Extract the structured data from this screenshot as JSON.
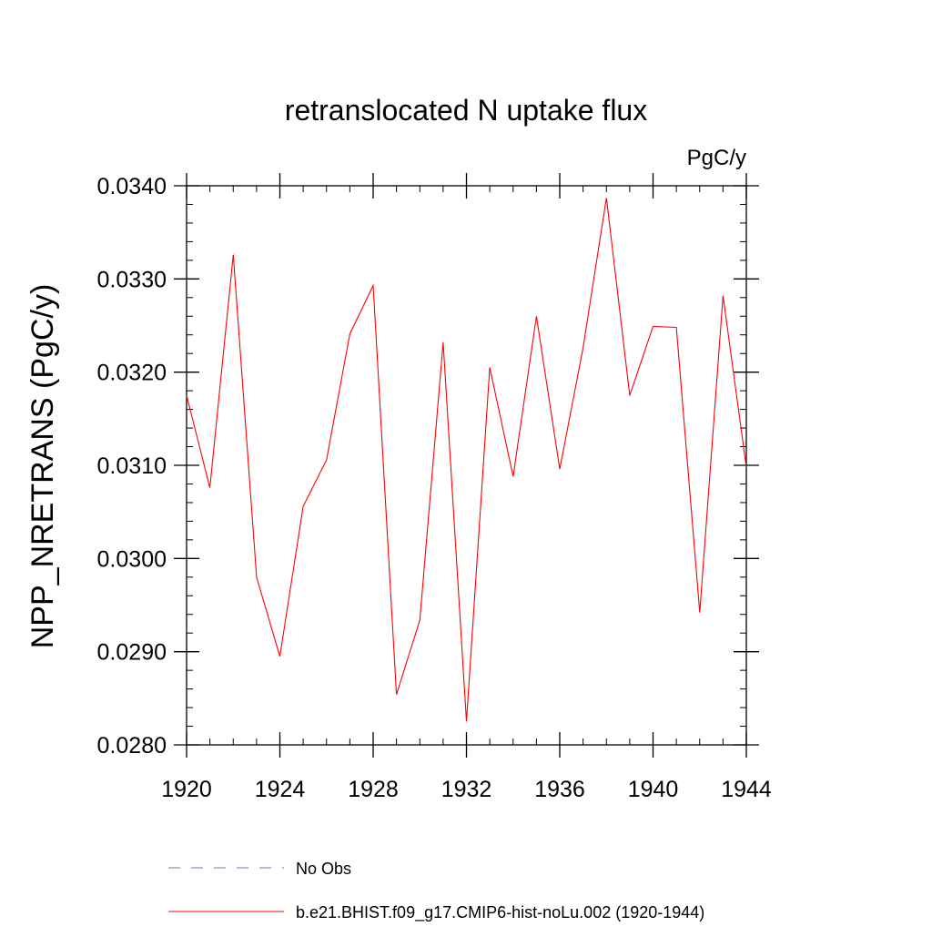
{
  "chart_data": {
    "type": "line",
    "title": "retranslocated N uptake flux",
    "units_label": "PgC/y",
    "ylabel": "NPP_NRETRANS  (PgC/y)",
    "xlabel": "",
    "xlim": [
      1920,
      1944
    ],
    "ylim": [
      0.028,
      0.034
    ],
    "x_ticks": [
      1920,
      1924,
      1928,
      1932,
      1936,
      1940,
      1944
    ],
    "x_tick_labels": [
      "1920",
      "1924",
      "1928",
      "1932",
      "1936",
      "1940",
      "1944"
    ],
    "y_ticks": [
      0.028,
      0.029,
      0.03,
      0.031,
      0.032,
      0.033,
      0.034
    ],
    "y_tick_labels": [
      "0.0280",
      "0.0290",
      "0.0300",
      "0.0310",
      "0.0320",
      "0.0330",
      "0.0340"
    ],
    "y_minor_step": 0.0002,
    "x_minor_step": 1,
    "series": [
      {
        "name": "b.e21.BHIST.f09_g17.CMIP6-hist-noLu.002 (1920-1944)",
        "color": "#ff0000",
        "style": "solid",
        "x": [
          1920,
          1921,
          1922,
          1923,
          1924,
          1925,
          1926,
          1927,
          1928,
          1929,
          1930,
          1931,
          1932,
          1933,
          1934,
          1935,
          1936,
          1937,
          1938,
          1939,
          1940,
          1941,
          1942,
          1943,
          1944
        ],
        "y": [
          0.03175,
          0.03076,
          0.03326,
          0.0298,
          0.02895,
          0.03056,
          0.03106,
          0.03241,
          0.03293,
          0.02854,
          0.02934,
          0.03232,
          0.02825,
          0.03205,
          0.03088,
          0.0326,
          0.03096,
          0.03226,
          0.03387,
          0.03175,
          0.03249,
          0.03248,
          0.02942,
          0.03282,
          0.03098
        ]
      }
    ],
    "legend": [
      {
        "label": "No Obs",
        "color": "#7b68c8",
        "style": "dashed"
      },
      {
        "label": "b.e21.BHIST.f09_g17.CMIP6-hist-noLu.002 (1920-1944)",
        "color": "#ff0000",
        "style": "solid"
      }
    ],
    "legend_placement": "bottom",
    "grid": false
  }
}
